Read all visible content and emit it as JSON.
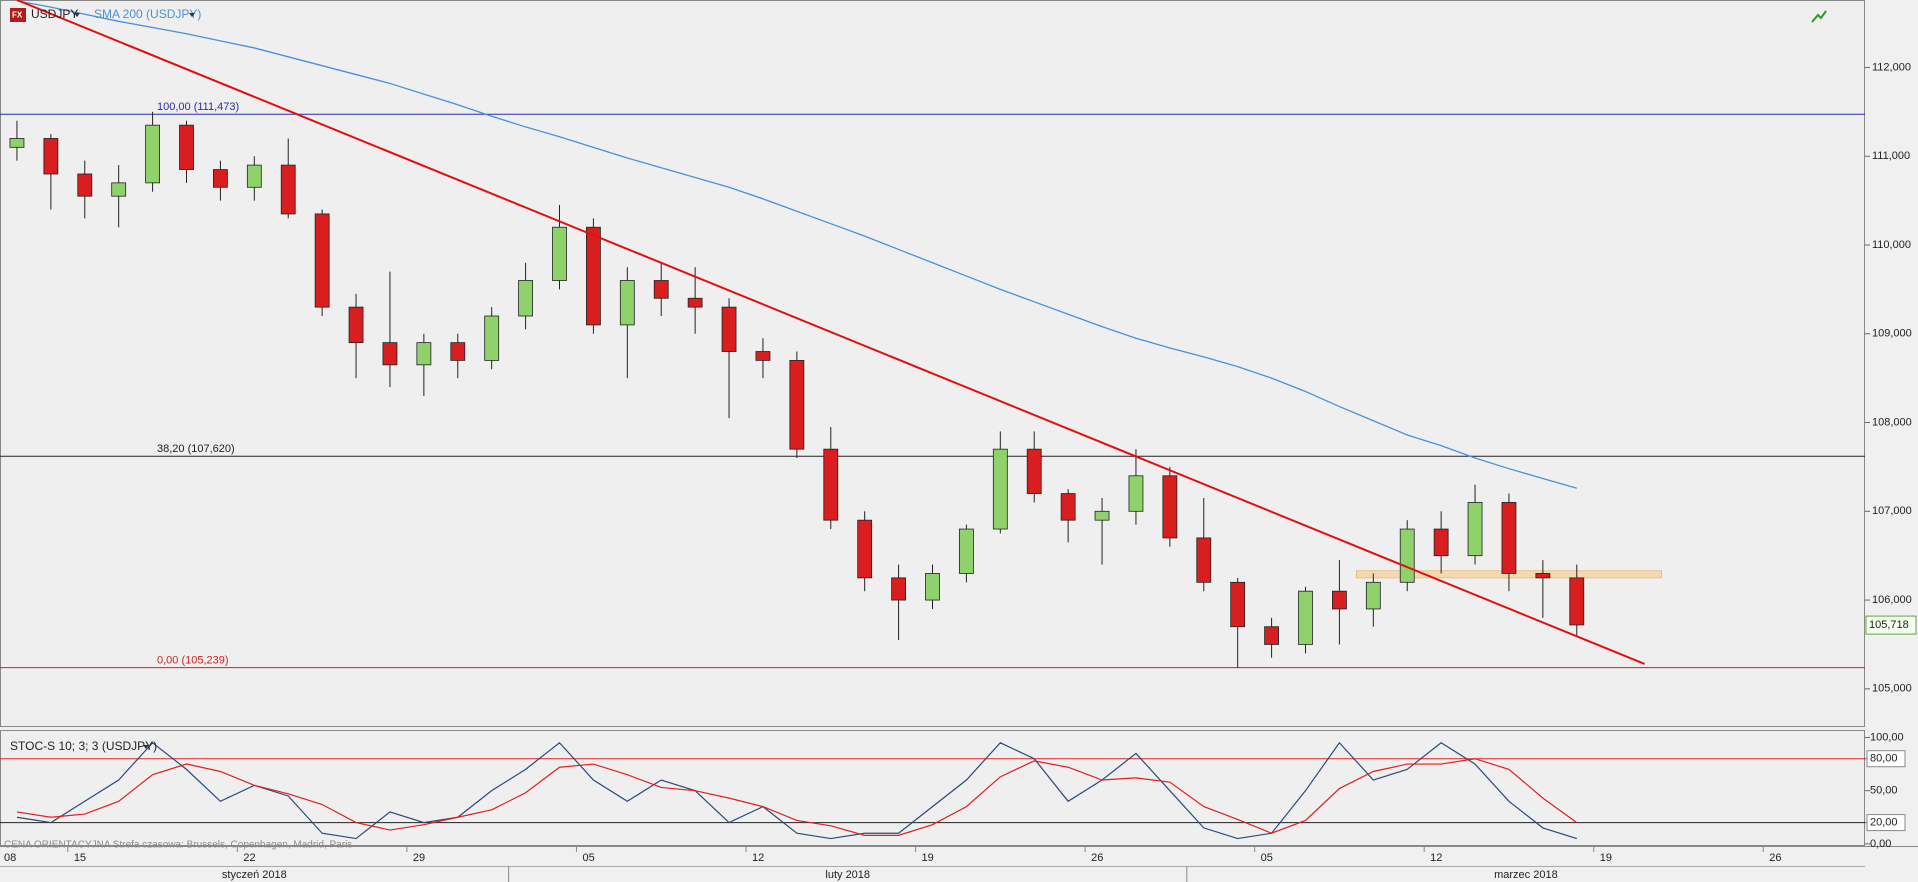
{
  "chart_data": [
    {
      "type": "candlestick",
      "title": "USDJPY",
      "x": [
        "2018-01-11",
        "2018-01-12",
        "2018-01-15",
        "2018-01-16",
        "2018-01-17",
        "2018-01-18",
        "2018-01-19",
        "2018-01-22",
        "2018-01-23",
        "2018-01-24",
        "2018-01-25",
        "2018-01-26",
        "2018-01-29",
        "2018-01-30",
        "2018-01-31",
        "2018-02-01",
        "2018-02-02",
        "2018-02-05",
        "2018-02-06",
        "2018-02-07",
        "2018-02-08",
        "2018-02-09",
        "2018-02-12",
        "2018-02-13",
        "2018-02-14",
        "2018-02-15",
        "2018-02-16",
        "2018-02-19",
        "2018-02-20",
        "2018-02-21",
        "2018-02-22",
        "2018-02-23",
        "2018-02-26",
        "2018-02-27",
        "2018-02-28",
        "2018-03-01",
        "2018-03-02",
        "2018-03-05",
        "2018-03-06",
        "2018-03-07",
        "2018-03-08",
        "2018-03-09",
        "2018-03-12",
        "2018-03-13",
        "2018-03-14",
        "2018-03-15",
        "2018-03-16"
      ],
      "open": [
        111.1,
        111.2,
        110.8,
        110.55,
        110.7,
        111.35,
        110.85,
        110.65,
        110.9,
        110.35,
        109.3,
        108.9,
        108.65,
        108.9,
        108.7,
        109.2,
        109.6,
        110.2,
        109.1,
        109.6,
        109.4,
        109.3,
        108.8,
        108.7,
        107.7,
        106.9,
        106.25,
        106.0,
        106.3,
        106.8,
        107.7,
        107.2,
        106.9,
        107.0,
        107.4,
        106.7,
        106.2,
        105.7,
        105.5,
        106.1,
        105.9,
        106.2,
        106.8,
        106.5,
        107.1,
        106.3,
        106.25
      ],
      "high": [
        111.4,
        111.25,
        110.95,
        110.9,
        111.5,
        111.4,
        110.95,
        111.0,
        111.2,
        110.4,
        109.45,
        109.7,
        109.0,
        109.0,
        109.3,
        109.8,
        110.45,
        110.3,
        109.75,
        109.8,
        109.75,
        109.4,
        108.95,
        108.8,
        107.95,
        107.0,
        106.4,
        106.4,
        106.85,
        107.9,
        107.9,
        107.25,
        107.15,
        107.7,
        107.5,
        107.15,
        106.25,
        105.8,
        106.15,
        106.45,
        106.3,
        106.9,
        107.0,
        107.3,
        107.2,
        106.45,
        106.4
      ],
      "low": [
        110.95,
        110.4,
        110.3,
        110.2,
        110.6,
        110.7,
        110.5,
        110.5,
        110.3,
        109.2,
        108.5,
        108.4,
        108.3,
        108.5,
        108.6,
        109.05,
        109.5,
        109.0,
        108.5,
        109.2,
        109.0,
        108.05,
        108.5,
        107.6,
        106.8,
        106.1,
        105.55,
        105.9,
        106.2,
        106.75,
        107.1,
        106.65,
        106.4,
        106.85,
        106.6,
        106.1,
        105.24,
        105.35,
        105.4,
        105.5,
        105.7,
        106.1,
        106.3,
        106.4,
        106.1,
        105.8,
        105.6
      ],
      "close": [
        111.2,
        110.8,
        110.55,
        110.7,
        111.35,
        110.85,
        110.65,
        110.9,
        110.35,
        109.3,
        108.9,
        108.65,
        108.9,
        108.7,
        109.2,
        109.6,
        110.2,
        109.1,
        109.6,
        109.4,
        109.3,
        108.8,
        108.7,
        107.7,
        106.9,
        106.25,
        106.0,
        106.3,
        106.8,
        107.7,
        107.2,
        106.9,
        107.0,
        107.4,
        106.7,
        106.2,
        105.7,
        105.5,
        106.1,
        105.9,
        106.2,
        106.8,
        106.5,
        107.1,
        106.3,
        106.25,
        105.72
      ],
      "up_color": "#8fd16a",
      "down_color": "#d81e1e",
      "series": [
        {
          "name": "SMA 200 (USDJPY)",
          "color": "#4a90d9",
          "values": [
            112.75,
            112.68,
            112.6,
            112.52,
            112.45,
            112.38,
            112.3,
            112.22,
            112.12,
            112.02,
            111.92,
            111.82,
            111.7,
            111.58,
            111.45,
            111.33,
            111.22,
            111.1,
            110.98,
            110.87,
            110.76,
            110.65,
            110.52,
            110.38,
            110.24,
            110.1,
            109.95,
            109.8,
            109.65,
            109.5,
            109.36,
            109.22,
            109.08,
            108.95,
            108.84,
            108.74,
            108.63,
            108.5,
            108.35,
            108.18,
            108.02,
            107.86,
            107.74,
            107.6,
            107.48,
            107.37,
            107.26
          ]
        }
      ],
      "levels": [
        {
          "value": 111.473,
          "label": "100,00 (111,473)",
          "color": "#2a2ab8"
        },
        {
          "value": 107.62,
          "label": "38,20 (107,620)",
          "color": "#222222"
        },
        {
          "value": 105.239,
          "label": "0,00 (105,239)",
          "color": "#d81e1e"
        }
      ],
      "trendline": {
        "x": [
          "2018-01-11",
          "2018-03-20"
        ],
        "values": [
          112.76,
          105.28
        ],
        "color": "#e01010"
      },
      "zone": {
        "x": [
          "2018-03-08",
          "2018-03-21"
        ],
        "y": [
          106.25,
          106.33
        ],
        "color": "#f5d9b0"
      },
      "last_price": {
        "value": 105.718,
        "label": "105,718"
      },
      "xlim": [
        "2018-01-11",
        "2018-03-29"
      ],
      "ylim": [
        104.57,
        112.76
      ],
      "yticks": [
        {
          "value": 105,
          "label": "105,000"
        },
        {
          "value": 106,
          "label": "106,000"
        },
        {
          "value": 107,
          "label": "107,000"
        },
        {
          "value": 108,
          "label": "108,000"
        },
        {
          "value": 109,
          "label": "109,000"
        },
        {
          "value": 110,
          "label": "110,000"
        },
        {
          "value": 111,
          "label": "111,000"
        },
        {
          "value": 112,
          "label": "112,000"
        }
      ],
      "xticks": [
        {
          "value": "2018-01-08",
          "label": "08"
        },
        {
          "value": "2018-01-15",
          "label": "15"
        },
        {
          "value": "2018-01-22",
          "label": "22"
        },
        {
          "value": "2018-01-29",
          "label": "29"
        },
        {
          "value": "2018-02-05",
          "label": "05"
        },
        {
          "value": "2018-02-12",
          "label": "12"
        },
        {
          "value": "2018-02-19",
          "label": "19"
        },
        {
          "value": "2018-02-26",
          "label": "26"
        },
        {
          "value": "2018-03-05",
          "label": "05"
        },
        {
          "value": "2018-03-12",
          "label": "12"
        },
        {
          "value": "2018-03-19",
          "label": "19"
        },
        {
          "value": "2018-03-26",
          "label": "26"
        }
      ],
      "months": [
        {
          "value": "2018-01",
          "label": "styczeń 2018"
        },
        {
          "value": "2018-02",
          "label": "luty 2018"
        },
        {
          "value": "2018-03",
          "label": "marzec 2018"
        }
      ]
    },
    {
      "type": "line",
      "title": "STOC-S 10; 3; 3 (USDJPY)",
      "note": "CENA ORIENTACYJNA   Strefa czasowa: Brussels, Copenhagen, Madrid, Paris",
      "x": [
        "2018-01-11",
        "2018-01-12",
        "2018-01-15",
        "2018-01-16",
        "2018-01-17",
        "2018-01-18",
        "2018-01-19",
        "2018-01-22",
        "2018-01-23",
        "2018-01-24",
        "2018-01-25",
        "2018-01-26",
        "2018-01-29",
        "2018-01-30",
        "2018-01-31",
        "2018-02-01",
        "2018-02-02",
        "2018-02-05",
        "2018-02-06",
        "2018-02-07",
        "2018-02-08",
        "2018-02-09",
        "2018-02-12",
        "2018-02-13",
        "2018-02-14",
        "2018-02-15",
        "2018-02-16",
        "2018-02-19",
        "2018-02-20",
        "2018-02-21",
        "2018-02-22",
        "2018-02-23",
        "2018-02-26",
        "2018-02-27",
        "2018-02-28",
        "2018-03-01",
        "2018-03-02",
        "2018-03-05",
        "2018-03-06",
        "2018-03-07",
        "2018-03-08",
        "2018-03-09",
        "2018-03-12",
        "2018-03-13",
        "2018-03-14",
        "2018-03-15",
        "2018-03-16"
      ],
      "series": [
        {
          "color": "#2b4a7a",
          "values": [
            25,
            20,
            40,
            60,
            95,
            70,
            40,
            55,
            45,
            10,
            5,
            30,
            20,
            25,
            50,
            70,
            95,
            60,
            40,
            60,
            50,
            20,
            35,
            10,
            5,
            10,
            10,
            35,
            60,
            95,
            80,
            40,
            60,
            85,
            50,
            15,
            5,
            10,
            50,
            95,
            60,
            70,
            95,
            75,
            40,
            15,
            5
          ]
        },
        {
          "color": "#e02020",
          "values": [
            30,
            25,
            28,
            40,
            65,
            75,
            68,
            55,
            47,
            37,
            20,
            13,
            18,
            25,
            32,
            48,
            72,
            75,
            65,
            53,
            50,
            43,
            35,
            22,
            17,
            8,
            8,
            18,
            35,
            63,
            78,
            72,
            60,
            62,
            58,
            35,
            23,
            10,
            22,
            52,
            68,
            75,
            75,
            80,
            70,
            43,
            20
          ]
        }
      ],
      "levels": [
        {
          "value": 80,
          "color": "#e02020"
        },
        {
          "value": 20,
          "color": "#222222"
        }
      ],
      "ylim": [
        -2,
        107
      ],
      "yticks": [
        {
          "value": 0,
          "label": "0,00"
        },
        {
          "value": 20,
          "label": "20,00"
        },
        {
          "value": 50,
          "label": "50,00"
        },
        {
          "value": 80,
          "label": "80,00"
        },
        {
          "value": 100,
          "label": "100,00"
        }
      ]
    }
  ]
}
